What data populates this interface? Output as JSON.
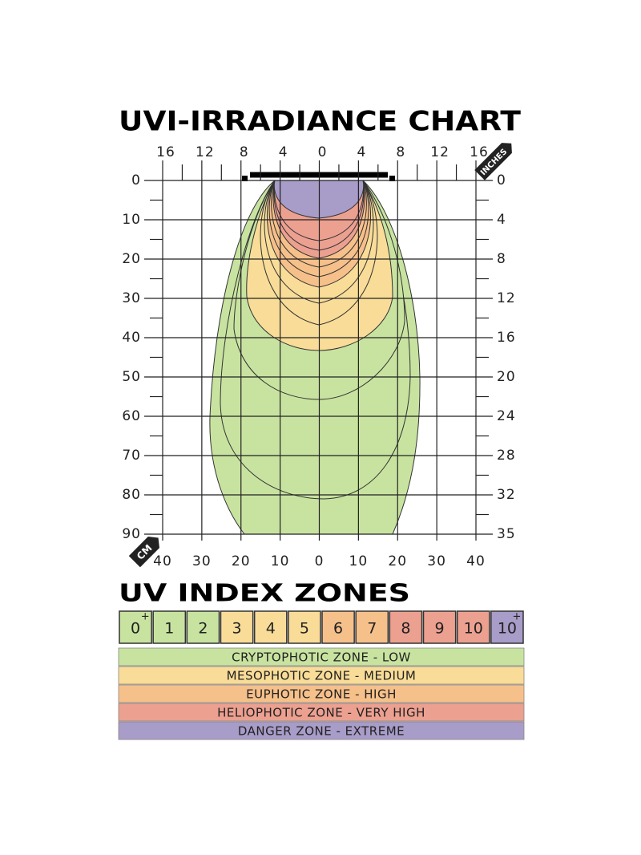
{
  "title": "UVI-IRRADIANCE CHART",
  "top_axis": {
    "unit": "INCHES",
    "labels": [
      "16",
      "12",
      "8",
      "4",
      "0",
      "4",
      "8",
      "12",
      "16"
    ]
  },
  "bottom_axis": {
    "unit": "CM",
    "labels": [
      "40",
      "30",
      "20",
      "10",
      "0",
      "10",
      "20",
      "30",
      "40"
    ]
  },
  "left_axis": {
    "labels": [
      "0",
      "10",
      "20",
      "30",
      "40",
      "50",
      "60",
      "70",
      "80",
      "90"
    ]
  },
  "right_axis": {
    "labels": [
      "0",
      "4",
      "8",
      "12",
      "16",
      "20",
      "24",
      "28",
      "32",
      "35"
    ]
  },
  "legend": {
    "title": "UV INDEX ZONES",
    "indices": [
      {
        "label": "0",
        "sup": "+"
      },
      {
        "label": "1"
      },
      {
        "label": "2"
      },
      {
        "label": "3"
      },
      {
        "label": "4"
      },
      {
        "label": "5"
      },
      {
        "label": "6"
      },
      {
        "label": "7"
      },
      {
        "label": "8"
      },
      {
        "label": "9"
      },
      {
        "label": "10"
      },
      {
        "label": "10",
        "sup": "+"
      }
    ],
    "zones": [
      "CRYPTOPHOTIC ZONE - LOW",
      "MESOPHOTIC ZONE - MEDIUM",
      "EUPHOTIC ZONE - HIGH",
      "HELIOPHOTIC ZONE - VERY HIGH",
      "DANGER ZONE - EXTREME"
    ]
  }
}
